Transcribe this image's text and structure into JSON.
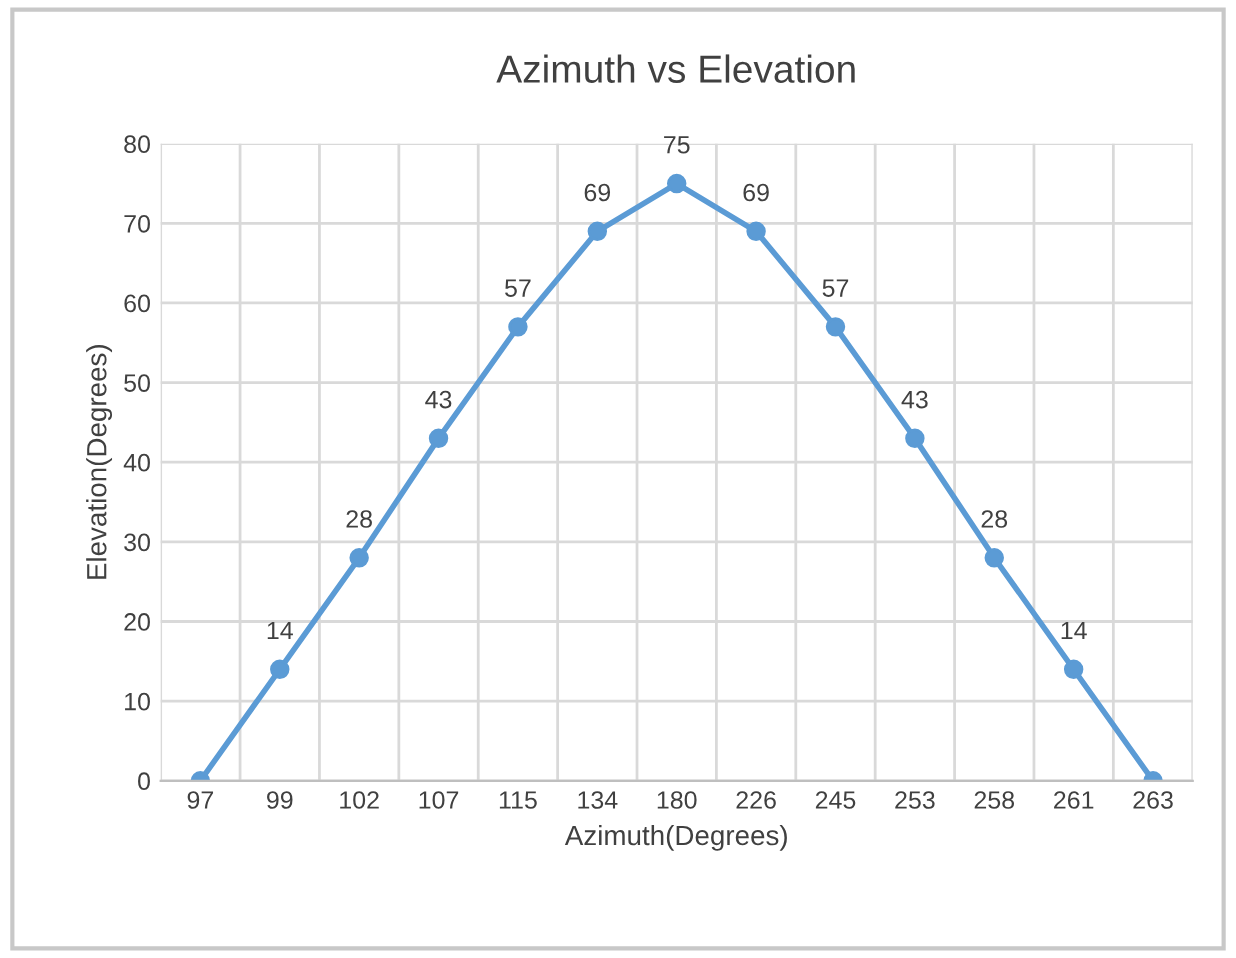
{
  "chart_data": {
    "type": "line",
    "title": "Azimuth vs Elevation",
    "xlabel": "Azimuth(Degrees)",
    "ylabel": "Elevation(Degrees)",
    "categories": [
      "97",
      "99",
      "102",
      "107",
      "115",
      "134",
      "180",
      "226",
      "245",
      "253",
      "258",
      "261",
      "263"
    ],
    "series": [
      {
        "color": "#5b9bd5",
        "values": [
          0,
          14,
          28,
          43,
          57,
          69,
          75,
          69,
          57,
          43,
          28,
          14,
          0
        ],
        "value_labels": [
          null,
          "14",
          "28",
          "43",
          "57",
          "69",
          "75",
          "69",
          "57",
          "43",
          "28",
          "14",
          null
        ]
      }
    ],
    "ylim": [
      0,
      80
    ],
    "yticks": [
      0,
      10,
      20,
      30,
      40,
      50,
      60,
      70,
      80
    ],
    "grid": true,
    "marker": "circle",
    "line_style": "solid",
    "legend": false
  }
}
